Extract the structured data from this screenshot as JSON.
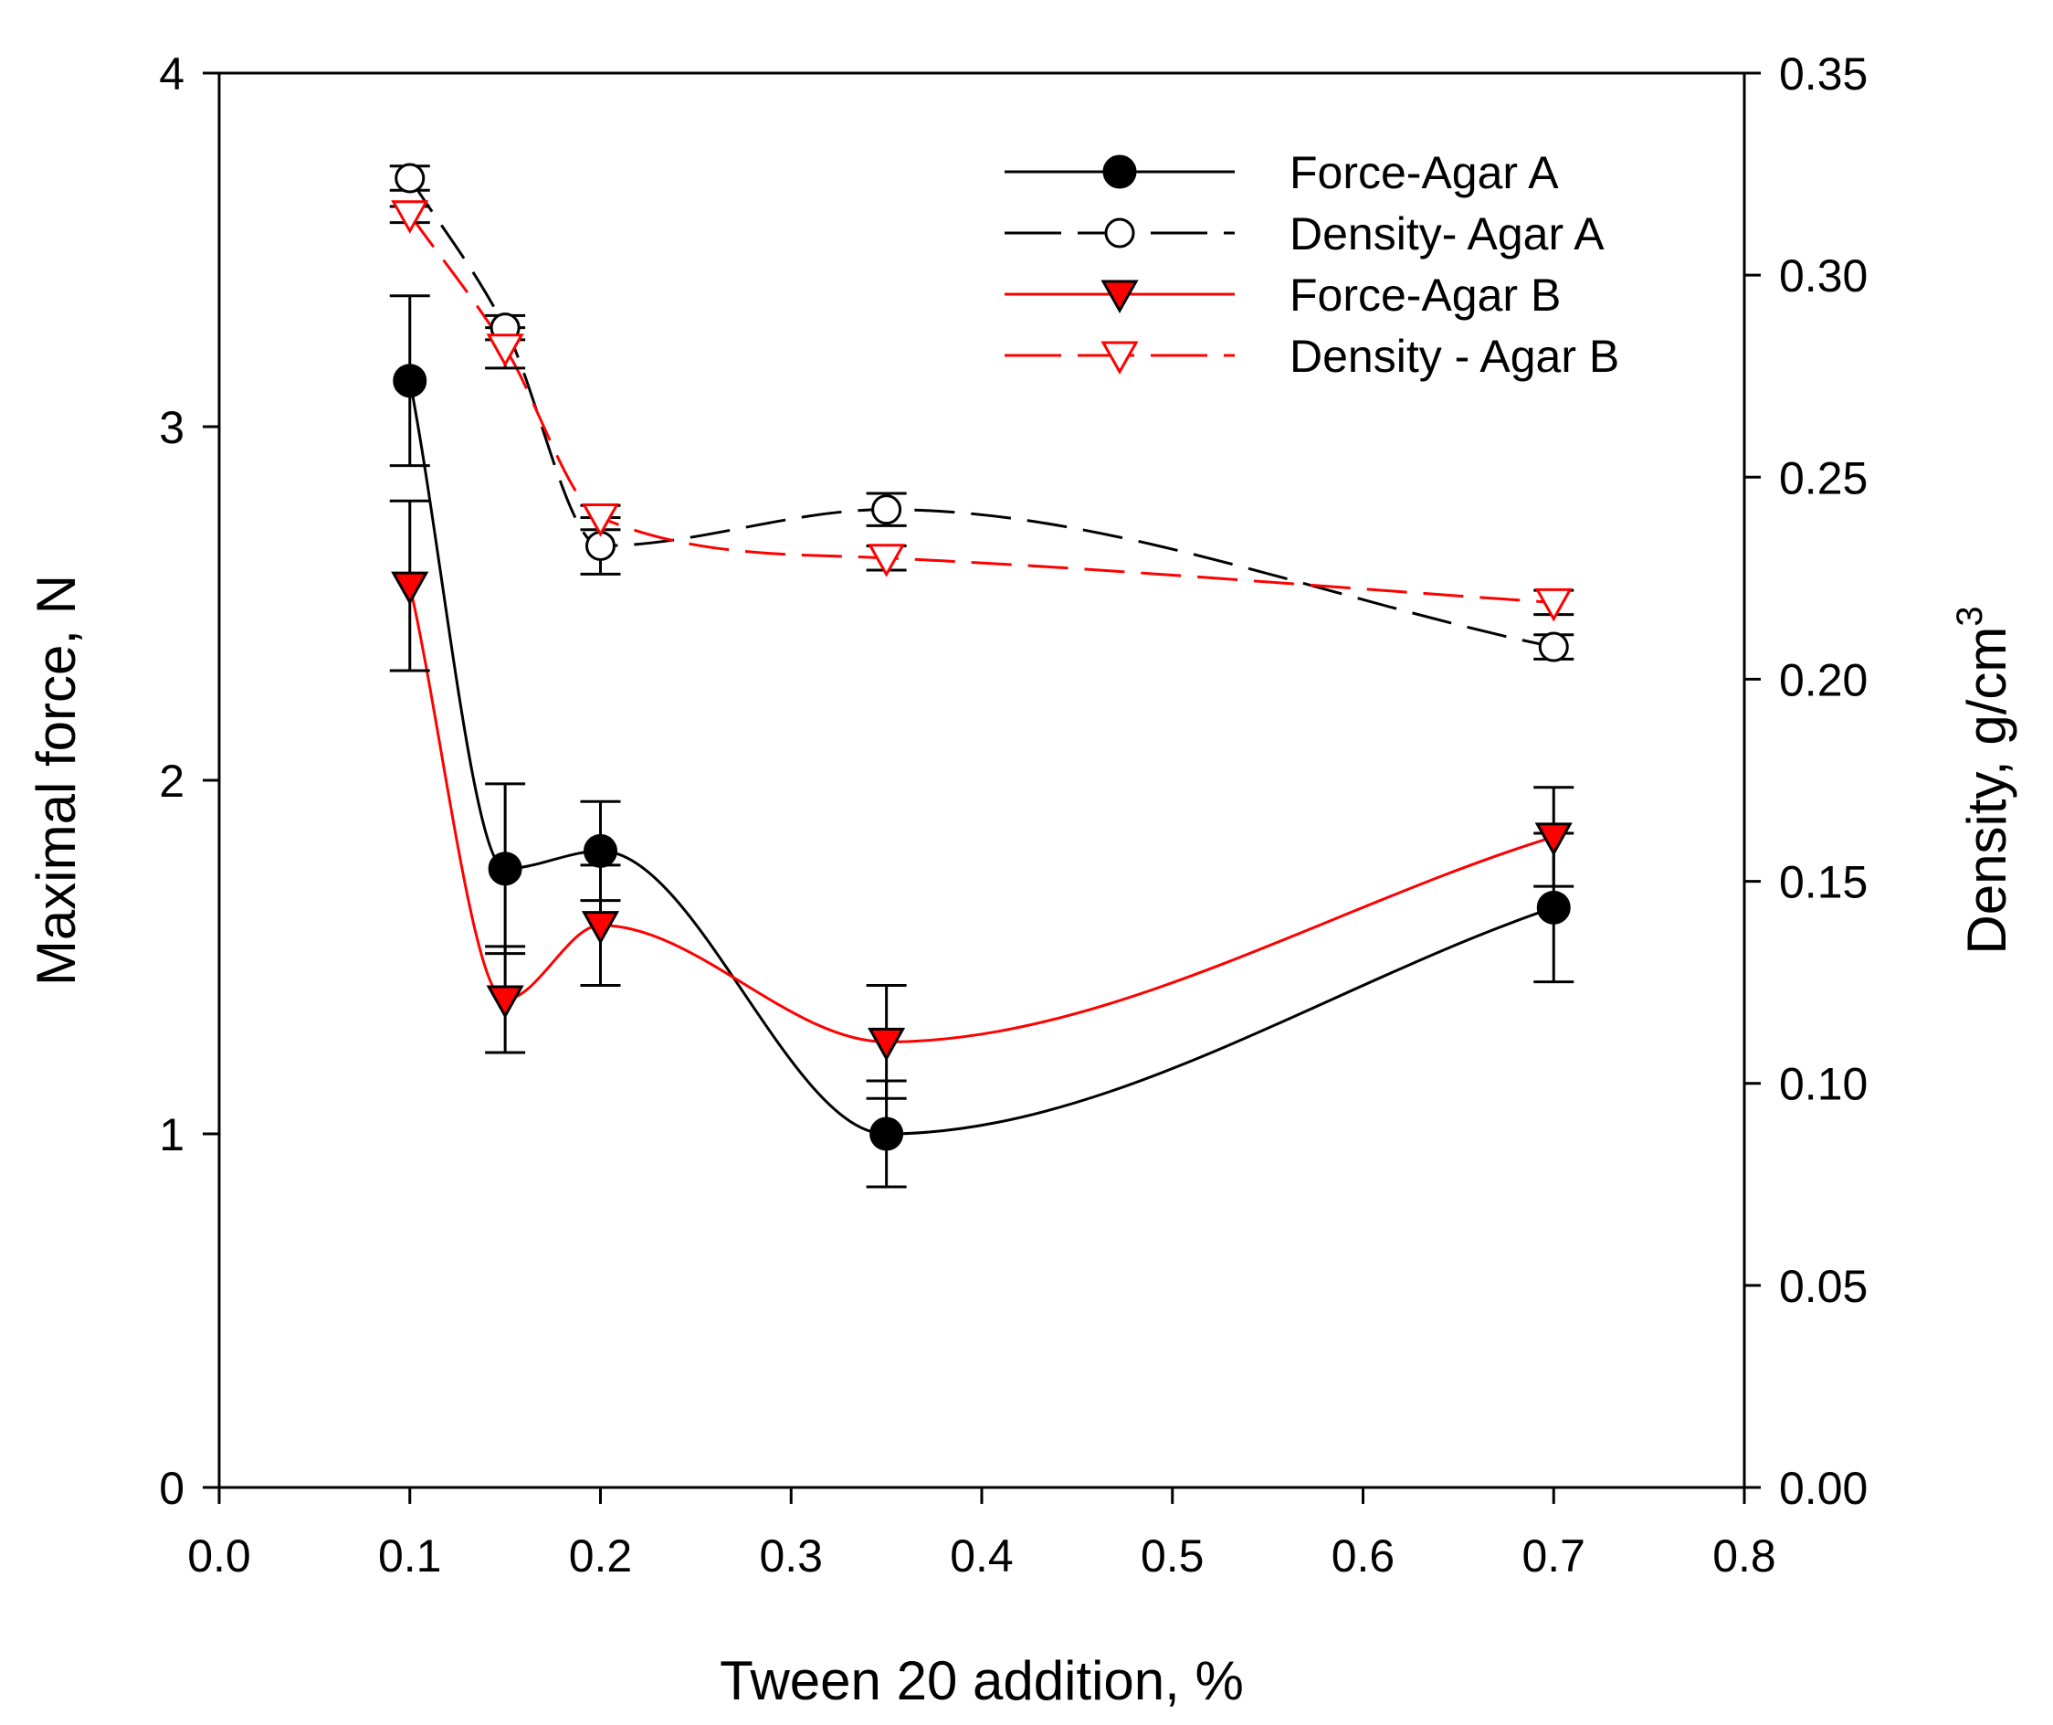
{
  "chart_data": {
    "type": "line",
    "x": [
      0.1,
      0.15,
      0.2,
      0.35,
      0.7
    ],
    "xlabel": "Tween 20 addition, %",
    "xlim": [
      0.0,
      0.8
    ],
    "xticks": [
      "0.0",
      "0.1",
      "0.2",
      "0.3",
      "0.4",
      "0.5",
      "0.6",
      "0.7",
      "0.8"
    ],
    "ylabel": "Maximal force, N",
    "ylim": [
      0,
      4
    ],
    "yticks": [
      "0",
      "1",
      "2",
      "3",
      "4"
    ],
    "y2label": "Density, g/cm",
    "y2label_superscript": "3",
    "y2lim": [
      0.0,
      0.35
    ],
    "y2ticks": [
      "0.00",
      "0.05",
      "0.10",
      "0.15",
      "0.20",
      "0.25",
      "0.30",
      "0.35"
    ],
    "legend_position": "top-right",
    "series": [
      {
        "name": "Force-Agar A",
        "axis": "left",
        "values": [
          3.13,
          1.75,
          1.8,
          1.0,
          1.64
        ],
        "errors": [
          0.24,
          0.24,
          0.14,
          0.15,
          0.21
        ],
        "color": "#000000",
        "marker": "filled-circle",
        "line": "solid"
      },
      {
        "name": "Density- Agar A",
        "axis": "right",
        "values": [
          0.324,
          0.287,
          0.233,
          0.242,
          0.208
        ],
        "errors": [
          0.003,
          0.003,
          0.007,
          0.004,
          0.003
        ],
        "color": "#000000",
        "marker": "open-circle",
        "line": "dashed"
      },
      {
        "name": "Force-Agar B",
        "axis": "left",
        "values": [
          2.55,
          1.38,
          1.59,
          1.26,
          1.84
        ],
        "errors": [
          0.24,
          0.15,
          0.17,
          0.16,
          0.14
        ],
        "color": "#ff0000",
        "marker": "filled-triangle-down",
        "line": "solid"
      },
      {
        "name": "Density - Agar B",
        "axis": "right",
        "values": [
          0.315,
          0.282,
          0.24,
          0.23,
          0.219
        ],
        "errors": [
          0.002,
          0.005,
          0.003,
          0.003,
          0.003
        ],
        "color": "#ff0000",
        "marker": "open-triangle-down",
        "line": "dashed"
      }
    ]
  }
}
